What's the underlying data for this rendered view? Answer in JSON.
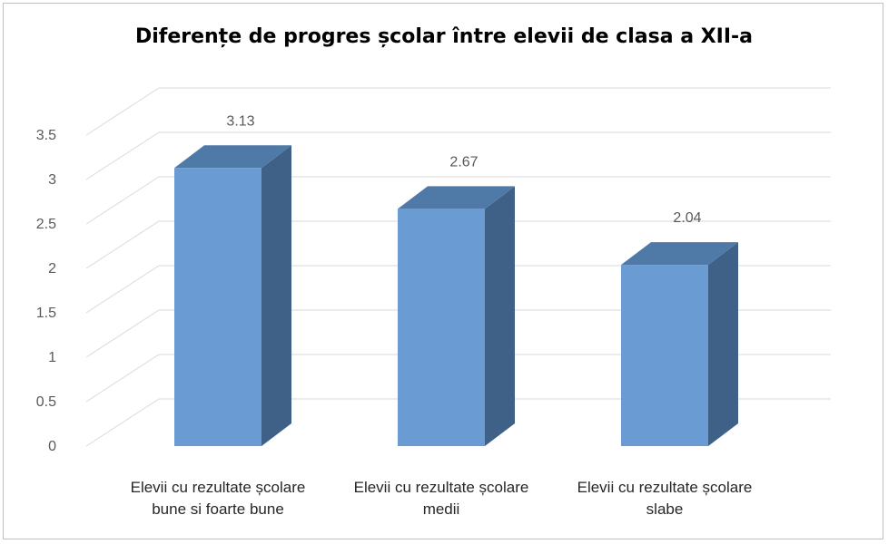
{
  "chart_data": {
    "type": "bar",
    "title": "Diferențe de progres școlar între elevii de clasa a XII-a",
    "categories": [
      [
        "Elevii cu rezultate școlare",
        "bune si foarte bune"
      ],
      [
        "Elevii cu rezultate școlare",
        "medii"
      ],
      [
        "Elevii cu rezultate școlare",
        "slabe"
      ]
    ],
    "values": [
      3.13,
      2.67,
      2.04
    ],
    "data_labels": [
      "3.13",
      "2.67",
      "2.04"
    ],
    "y_ticks": [
      "0",
      "0.5",
      "1",
      "1.5",
      "2",
      "2.5",
      "3",
      "3.5"
    ],
    "ylim": [
      0,
      3.5
    ],
    "grid": true,
    "style": "3d-column",
    "colors": {
      "front": "#6a9bd3",
      "top": "#4f7aa8",
      "side": "#3f6187",
      "grid": "#d9d9d9",
      "text": "#595959"
    }
  }
}
